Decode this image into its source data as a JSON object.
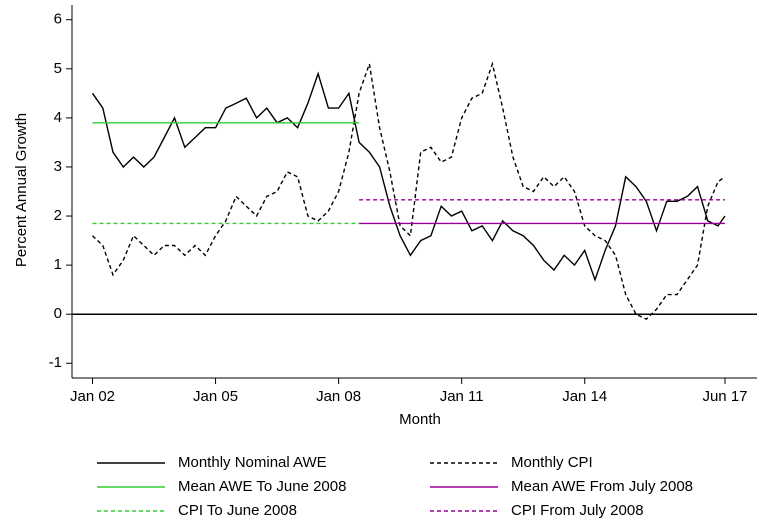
{
  "chart_data": {
    "type": "line",
    "xlabel": "Month",
    "ylabel": "Percent Annual Growth",
    "xlim": [
      2001.5,
      2018.2
    ],
    "ylim": [
      -1.3,
      6.3
    ],
    "xticks": [
      {
        "value": 2002,
        "label": "Jan 02"
      },
      {
        "value": 2005,
        "label": "Jan 05"
      },
      {
        "value": 2008,
        "label": "Jan 08"
      },
      {
        "value": 2011,
        "label": "Jan 11"
      },
      {
        "value": 2014,
        "label": "Jan 14"
      },
      {
        "value": 2017.42,
        "label": "Jun 17"
      }
    ],
    "yticks": [
      -1,
      0,
      1,
      2,
      3,
      4,
      5,
      6
    ],
    "zero_line": true,
    "series": [
      {
        "name": "Monthly Nominal AWE",
        "color": "#000000",
        "dash": "solid",
        "x": [
          2002,
          2002.25,
          2002.5,
          2002.75,
          2003,
          2003.25,
          2003.5,
          2003.75,
          2004,
          2004.25,
          2004.5,
          2004.75,
          2005,
          2005.25,
          2005.5,
          2005.75,
          2006,
          2006.25,
          2006.5,
          2006.75,
          2007,
          2007.25,
          2007.5,
          2007.75,
          2008,
          2008.25,
          2008.5,
          2008.75,
          2009,
          2009.25,
          2009.5,
          2009.75,
          2010,
          2010.25,
          2010.5,
          2010.75,
          2011,
          2011.25,
          2011.5,
          2011.75,
          2012,
          2012.25,
          2012.5,
          2012.75,
          2013,
          2013.25,
          2013.5,
          2013.75,
          2014,
          2014.25,
          2014.5,
          2014.75,
          2015,
          2015.25,
          2015.5,
          2015.75,
          2016,
          2016.25,
          2016.5,
          2016.75,
          2017,
          2017.25,
          2017.42
        ],
        "values": [
          4.5,
          4.2,
          3.3,
          3.0,
          3.2,
          3.0,
          3.2,
          3.6,
          4.0,
          3.4,
          3.6,
          3.8,
          3.8,
          4.2,
          4.3,
          4.4,
          4.0,
          4.2,
          3.9,
          4.0,
          3.8,
          4.3,
          4.9,
          4.2,
          4.2,
          4.5,
          3.5,
          3.3,
          3.0,
          2.2,
          1.6,
          1.2,
          1.5,
          1.6,
          2.2,
          2.0,
          2.1,
          1.7,
          1.8,
          1.5,
          1.9,
          1.7,
          1.6,
          1.4,
          1.1,
          0.9,
          1.2,
          1.0,
          1.3,
          0.7,
          1.3,
          1.8,
          2.8,
          2.6,
          2.3,
          1.7,
          2.3,
          2.3,
          2.4,
          2.6,
          1.9,
          1.8,
          2.0
        ]
      },
      {
        "name": "Monthly CPI",
        "color": "#000000",
        "dash": "dashed",
        "x": [
          2002,
          2002.25,
          2002.5,
          2002.75,
          2003,
          2003.25,
          2003.5,
          2003.75,
          2004,
          2004.25,
          2004.5,
          2004.75,
          2005,
          2005.25,
          2005.5,
          2005.75,
          2006,
          2006.25,
          2006.5,
          2006.75,
          2007,
          2007.25,
          2007.5,
          2007.75,
          2008,
          2008.25,
          2008.5,
          2008.75,
          2009,
          2009.25,
          2009.5,
          2009.75,
          2010,
          2010.25,
          2010.5,
          2010.75,
          2011,
          2011.25,
          2011.5,
          2011.75,
          2012,
          2012.25,
          2012.5,
          2012.75,
          2013,
          2013.25,
          2013.5,
          2013.75,
          2014,
          2014.25,
          2014.5,
          2014.75,
          2015,
          2015.25,
          2015.5,
          2015.75,
          2016,
          2016.25,
          2016.5,
          2016.75,
          2017,
          2017.25,
          2017.42
        ],
        "values": [
          1.6,
          1.4,
          0.8,
          1.1,
          1.6,
          1.4,
          1.2,
          1.4,
          1.4,
          1.2,
          1.4,
          1.2,
          1.6,
          1.9,
          2.4,
          2.2,
          2.0,
          2.4,
          2.5,
          2.9,
          2.8,
          2.0,
          1.9,
          2.1,
          2.5,
          3.3,
          4.5,
          5.1,
          3.8,
          2.9,
          1.8,
          1.6,
          3.3,
          3.4,
          3.1,
          3.2,
          4.0,
          4.4,
          4.5,
          5.1,
          4.2,
          3.2,
          2.6,
          2.5,
          2.8,
          2.6,
          2.8,
          2.5,
          1.8,
          1.6,
          1.5,
          1.2,
          0.4,
          0.0,
          -0.1,
          0.1,
          0.4,
          0.4,
          0.7,
          1.0,
          2.2,
          2.7,
          2.8
        ]
      },
      {
        "name": "Mean AWE To June 2008",
        "color": "#33cc33",
        "dash": "solid",
        "x": [
          2002,
          2008.5
        ],
        "values": [
          3.9,
          3.9
        ]
      },
      {
        "name": "Mean AWE From July 2008",
        "color": "#990099",
        "dash": "solid",
        "x": [
          2008.5,
          2017.42
        ],
        "values": [
          1.85,
          1.85
        ]
      },
      {
        "name": "CPI To June 2008",
        "color": "#33cc33",
        "dash": "dashed",
        "x": [
          2002,
          2008.5
        ],
        "values": [
          1.85,
          1.85
        ]
      },
      {
        "name": "CPI From July 2008",
        "color": "#990099",
        "dash": "dashed",
        "x": [
          2008.5,
          2017.42
        ],
        "values": [
          2.33,
          2.33
        ]
      }
    ]
  }
}
